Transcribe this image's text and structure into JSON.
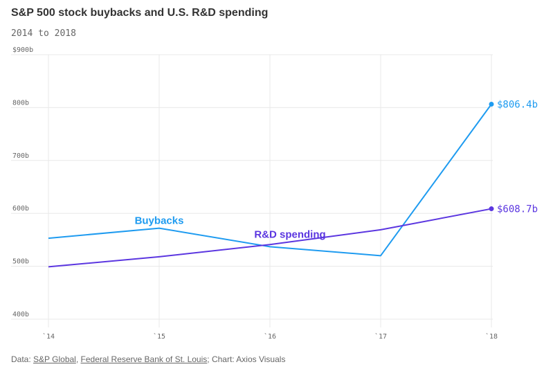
{
  "header": {
    "title": "S&P 500 stock buybacks and U.S. R&D spending",
    "subtitle": "2014 to 2018"
  },
  "footer": {
    "data_prefix": "Data: ",
    "source1": "S&P Global",
    "separator": ", ",
    "source2": "Federal Reserve Bank of St. Louis",
    "suffix": "; Chart: Axios Visuals"
  },
  "colors": {
    "buybacks": "#1e9bf0",
    "rd": "#5b36e0",
    "grid": "#e8e8e8"
  },
  "chart_data": {
    "type": "line",
    "title": "S&P 500 stock buybacks and U.S. R&D spending",
    "subtitle": "2014 to 2018",
    "categories": [
      "`14",
      "`15",
      "`16",
      "`17",
      "`18"
    ],
    "ylim": [
      400,
      900
    ],
    "y_ticks": [
      400,
      500,
      600,
      700,
      800,
      900
    ],
    "y_tick_labels": [
      "400b",
      "500b",
      "600b",
      "700b",
      "800b",
      "$900b"
    ],
    "grid": true,
    "series": [
      {
        "name": "Buybacks",
        "label": "Buybacks",
        "values": [
          553,
          572,
          537,
          520,
          806.4
        ],
        "end_label": "$806.4b"
      },
      {
        "name": "R&D spending",
        "label": "R&D spending",
        "values": [
          499,
          518,
          541,
          569,
          608.7
        ],
        "end_label": "$608.7b"
      }
    ]
  }
}
